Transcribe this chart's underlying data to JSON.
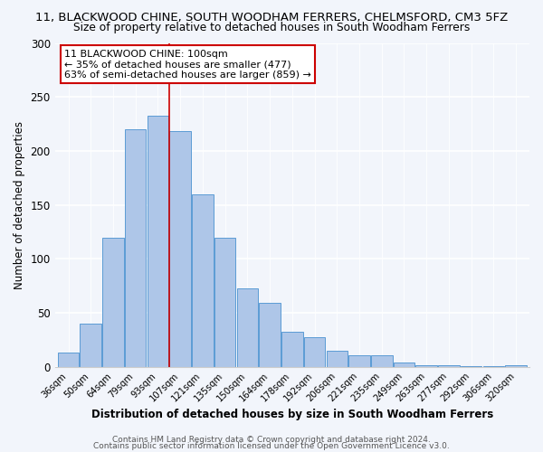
{
  "title": "11, BLACKWOOD CHINE, SOUTH WOODHAM FERRERS, CHELMSFORD, CM3 5FZ",
  "subtitle": "Size of property relative to detached houses in South Woodham Ferrers",
  "xlabel": "Distribution of detached houses by size in South Woodham Ferrers",
  "ylabel": "Number of detached properties",
  "bar_labels": [
    "36sqm",
    "50sqm",
    "64sqm",
    "79sqm",
    "93sqm",
    "107sqm",
    "121sqm",
    "135sqm",
    "150sqm",
    "164sqm",
    "178sqm",
    "192sqm",
    "206sqm",
    "221sqm",
    "235sqm",
    "249sqm",
    "263sqm",
    "277sqm",
    "292sqm",
    "306sqm",
    "320sqm"
  ],
  "bar_values": [
    13,
    40,
    120,
    220,
    233,
    218,
    160,
    120,
    73,
    59,
    33,
    28,
    15,
    11,
    11,
    4,
    2,
    2,
    1,
    1,
    2
  ],
  "bar_color": "#aec6e8",
  "bar_edge_color": "#5b9bd5",
  "annotation_title": "11 BLACKWOOD CHINE: 100sqm",
  "annotation_line1": "← 35% of detached houses are smaller (477)",
  "annotation_line2": "63% of semi-detached houses are larger (859) →",
  "annotation_box_color": "#ffffff",
  "annotation_box_edge_color": "#cc0000",
  "vline_x_index": 5,
  "vline_color": "#cc0000",
  "ylim": [
    0,
    300
  ],
  "yticks": [
    0,
    50,
    100,
    150,
    200,
    250,
    300
  ],
  "footnote1": "Contains HM Land Registry data © Crown copyright and database right 2024.",
  "footnote2": "Contains public sector information licensed under the Open Government Licence v3.0.",
  "background_color": "#f2f5fb",
  "plot_background": "#f2f5fb",
  "title_fontsize": 9.5,
  "subtitle_fontsize": 8.8,
  "xlabel_fontsize": 8.5,
  "ylabel_fontsize": 8.5,
  "footnote_fontsize": 6.5
}
